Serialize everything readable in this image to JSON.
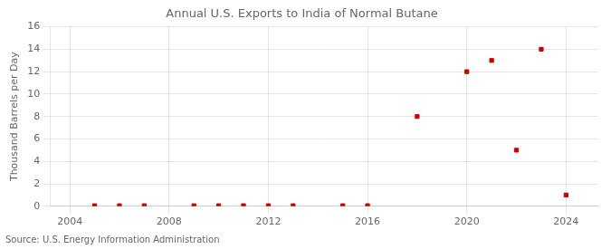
{
  "chart_data": {
    "type": "scatter",
    "title": "Annual U.S. Exports to India of Normal Butane",
    "ylabel": "Thousand Barrels per Day",
    "annotation": "Source: U.S. Energy Information Administration",
    "x": [
      2005,
      2006,
      2007,
      2009,
      2010,
      2011,
      2012,
      2013,
      2015,
      2016,
      2018,
      2020,
      2021,
      2022,
      2023,
      2024
    ],
    "values": [
      0.05,
      0.05,
      0.05,
      0.05,
      0.05,
      0.05,
      0.05,
      0.05,
      0.05,
      0.05,
      8.0,
      12.0,
      13.0,
      5.0,
      14.0,
      1.0
    ],
    "color": "#cc0000",
    "marker": "square",
    "xlim": [
      2003.2,
      2025.3
    ],
    "ylim": [
      0,
      16
    ],
    "xticks": [
      2004,
      2008,
      2012,
      2016,
      2020,
      2024
    ],
    "yticks": [
      0,
      2,
      4,
      6,
      8,
      10,
      12,
      14,
      16
    ],
    "grid": true
  }
}
